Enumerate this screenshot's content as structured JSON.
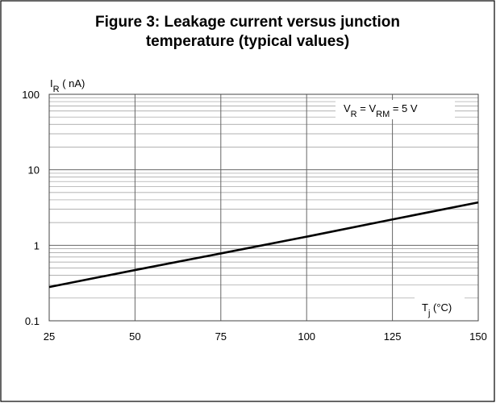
{
  "chart_data": {
    "type": "line",
    "title": [
      "Figure 3: Leakage current versus junction",
      "temperature (typical values)"
    ],
    "ylabel": [
      {
        "text": "I"
      },
      {
        "text": "R",
        "sub": true
      },
      {
        "text": " ( nA)"
      }
    ],
    "xlabel": [
      {
        "text": "T"
      },
      {
        "text": "j",
        "sub": true
      },
      {
        "text": " (°C)"
      }
    ],
    "annotation": [
      {
        "text": "V"
      },
      {
        "text": "R",
        "sub": true
      },
      {
        "text": " = V"
      },
      {
        "text": "RM",
        "sub": true
      },
      {
        "text": " = 5 V"
      }
    ],
    "x": [
      25,
      50,
      75,
      100,
      125,
      150
    ],
    "series": [
      {
        "color": "#000000",
        "values": [
          0.28,
          0.47,
          0.78,
          1.3,
          2.2,
          3.7
        ]
      }
    ],
    "xlim": [
      25,
      150
    ],
    "xticks": [
      25,
      50,
      75,
      100,
      125,
      150
    ],
    "ylim": [
      0.1,
      100
    ],
    "yticks": [
      0.1,
      1,
      10,
      100
    ],
    "ylog": true,
    "grid": true,
    "minor_grid": true
  }
}
